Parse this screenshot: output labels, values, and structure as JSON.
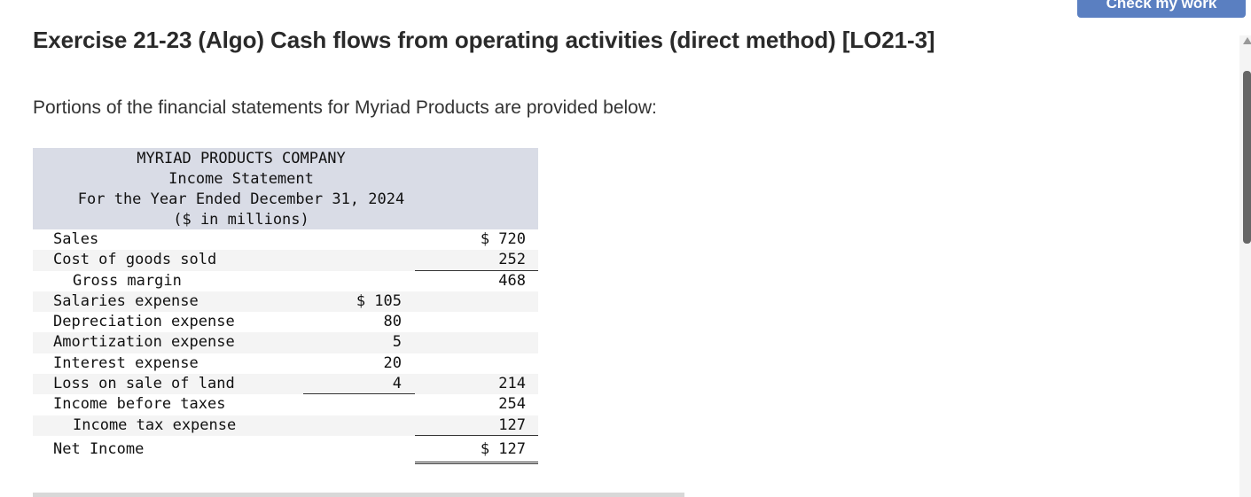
{
  "header": {
    "check_button_label": "Check my work",
    "title": "Exercise 21-23 (Algo) Cash flows from operating activities (direct method) [LO21-3]"
  },
  "intro": "Portions of the financial statements for Myriad Products are provided below:",
  "statement": {
    "company": "MYRIAD PRODUCTS COMPANY",
    "name": "Income Statement",
    "period": "For the Year Ended December 31, 2024",
    "units": "($ in millions)",
    "rows": [
      {
        "label": "Sales",
        "col1": "",
        "col2": "$ 720"
      },
      {
        "label": "Cost of goods sold",
        "col1": "",
        "col2": "252"
      },
      {
        "label": "Gross margin",
        "col1": "",
        "col2": "468"
      },
      {
        "label": "Salaries expense",
        "col1": "$ 105",
        "col2": ""
      },
      {
        "label": "Depreciation expense",
        "col1": "80",
        "col2": ""
      },
      {
        "label": "Amortization expense",
        "col1": "5",
        "col2": ""
      },
      {
        "label": "Interest expense",
        "col1": "20",
        "col2": ""
      },
      {
        "label": "Loss on sale of land",
        "col1": "4",
        "col2": "214"
      },
      {
        "label": "Income before taxes",
        "col1": "",
        "col2": "254"
      },
      {
        "label": "Income tax expense",
        "col1": "",
        "col2": "127"
      },
      {
        "label": "Net Income",
        "col1": "",
        "col2": "$ 127"
      }
    ]
  }
}
